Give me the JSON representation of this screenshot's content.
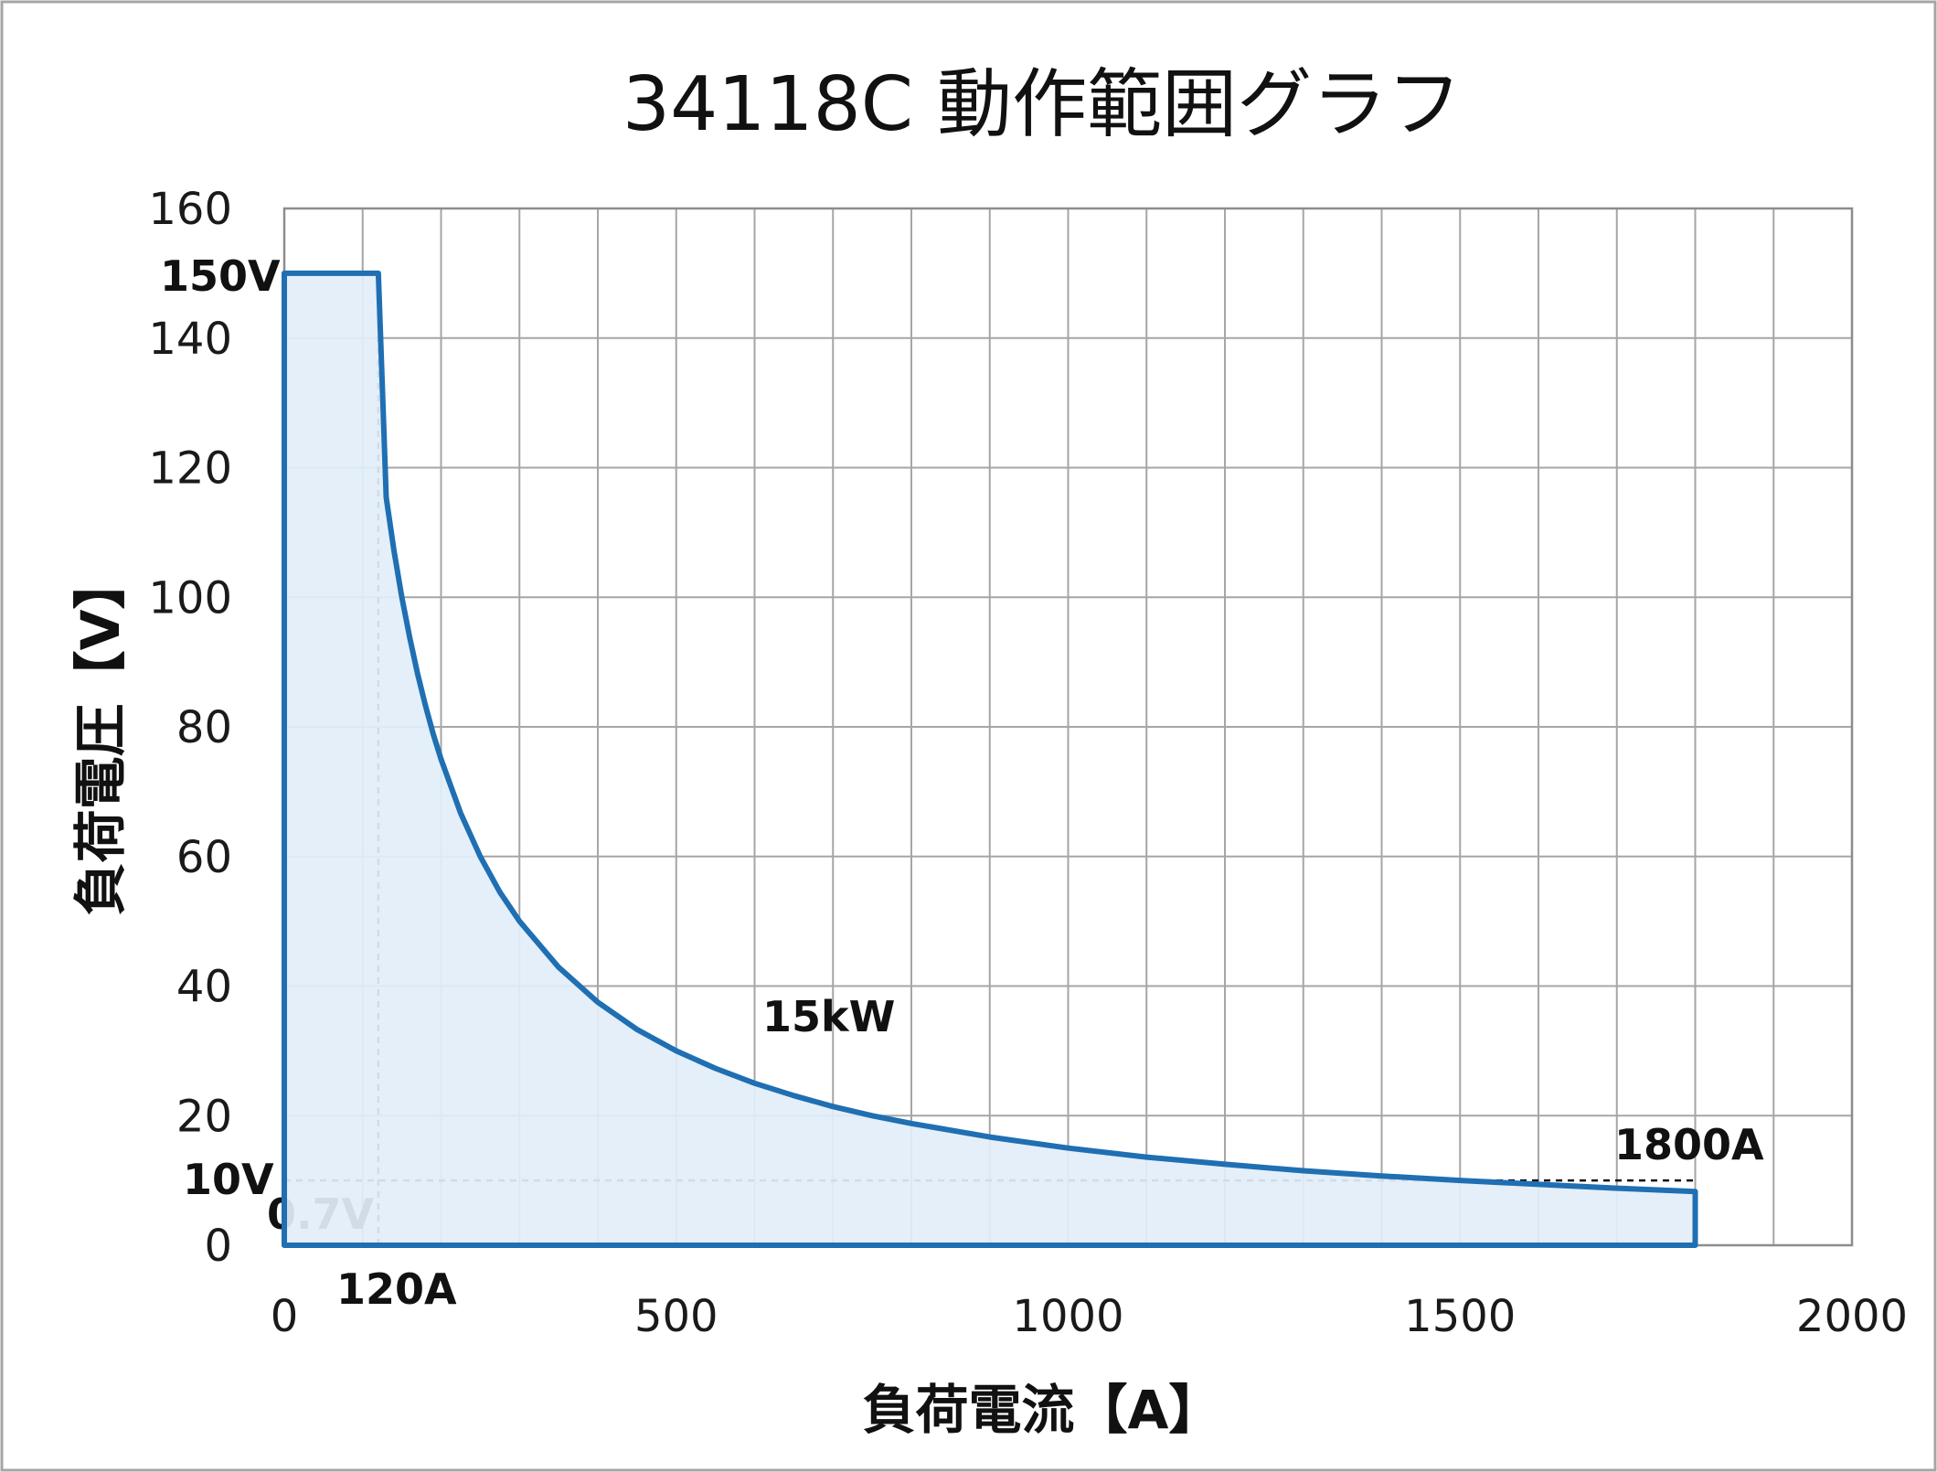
{
  "chart_data": {
    "type": "area",
    "title": "34118C 動作範囲グラフ",
    "xlabel": "負荷電流【A】",
    "ylabel": "負荷電圧【V】",
    "xlim": [
      0,
      2000
    ],
    "ylim": [
      0,
      160
    ],
    "x_ticks": [
      0,
      500,
      1000,
      1500,
      2000
    ],
    "y_ticks": [
      0,
      20,
      40,
      60,
      80,
      100,
      120,
      140,
      160
    ],
    "x_gridlines": [
      0,
      100,
      200,
      300,
      400,
      500,
      600,
      700,
      800,
      900,
      1000,
      1100,
      1200,
      1300,
      1400,
      1500,
      1600,
      1700,
      1800,
      1900,
      2000
    ],
    "y_gridlines": [
      0,
      20,
      40,
      60,
      80,
      100,
      120,
      140,
      160
    ],
    "grid": true,
    "legend": false,
    "colors": {
      "line": "#1f6fb2",
      "fill": "#e2eef8",
      "grid": "#a6a6a6",
      "frame": "#8c8c8c"
    },
    "series": [
      {
        "values": [
          [
            0,
            0
          ],
          [
            0,
            150
          ],
          [
            120,
            150
          ],
          [
            130,
            115.4
          ],
          [
            140,
            107.1
          ],
          [
            150,
            100
          ],
          [
            160,
            93.8
          ],
          [
            170,
            88.2
          ],
          [
            180,
            83.3
          ],
          [
            190,
            78.9
          ],
          [
            200,
            75
          ],
          [
            225,
            66.7
          ],
          [
            250,
            60
          ],
          [
            275,
            54.5
          ],
          [
            300,
            50
          ],
          [
            350,
            42.9
          ],
          [
            400,
            37.5
          ],
          [
            450,
            33.3
          ],
          [
            500,
            30
          ],
          [
            550,
            27.3
          ],
          [
            600,
            25
          ],
          [
            650,
            23.1
          ],
          [
            700,
            21.4
          ],
          [
            750,
            20
          ],
          [
            800,
            18.8
          ],
          [
            900,
            16.7
          ],
          [
            1000,
            15
          ],
          [
            1100,
            13.6
          ],
          [
            1200,
            12.5
          ],
          [
            1300,
            11.5
          ],
          [
            1400,
            10.7
          ],
          [
            1500,
            10
          ],
          [
            1600,
            9.4
          ],
          [
            1700,
            8.8
          ],
          [
            1800,
            8.3
          ],
          [
            1800,
            0
          ]
        ]
      }
    ],
    "reference_lines": [
      {
        "x": 120,
        "from_y": 0,
        "to_y": 150
      },
      {
        "y": 10,
        "from_x": 0,
        "to_x": 1800
      }
    ],
    "annotations": {
      "v150": "150V",
      "v10": "10V",
      "v07": "0.7V",
      "a120": "120A",
      "a1800": "1800A",
      "power": "15kW"
    }
  }
}
